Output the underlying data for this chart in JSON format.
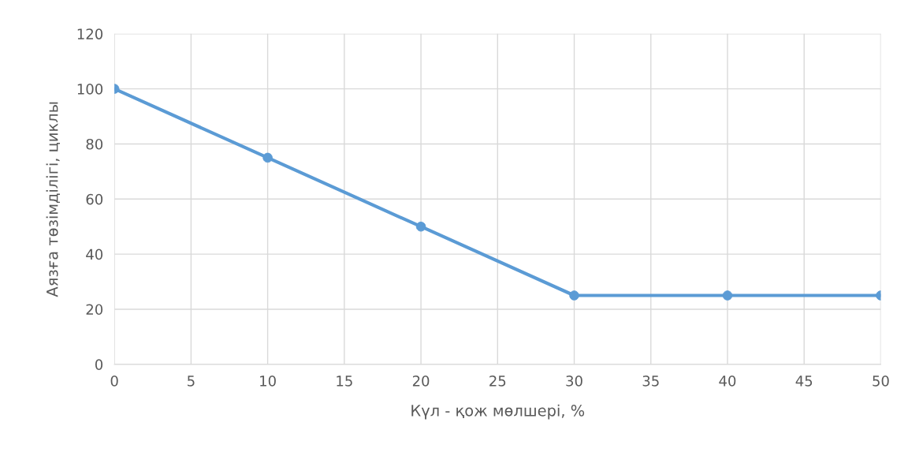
{
  "chart_data": {
    "type": "line",
    "xlabel": "Күл - қож мөлшері, %",
    "ylabel": "Аязға төзімділігі, циклы",
    "x": [
      0,
      10,
      20,
      30,
      40,
      50
    ],
    "series": [
      {
        "color": "#5b9bd5",
        "values": [
          100,
          75,
          50,
          25,
          25,
          25
        ]
      }
    ],
    "xlim": [
      0,
      50
    ],
    "xticks": [
      0,
      5,
      10,
      15,
      20,
      25,
      30,
      35,
      40,
      45,
      50
    ],
    "ylim": [
      0,
      120
    ],
    "yticks": [
      0,
      20,
      40,
      60,
      80,
      100,
      120
    ],
    "grid": true,
    "marker": "circle",
    "line_style": "solid"
  }
}
